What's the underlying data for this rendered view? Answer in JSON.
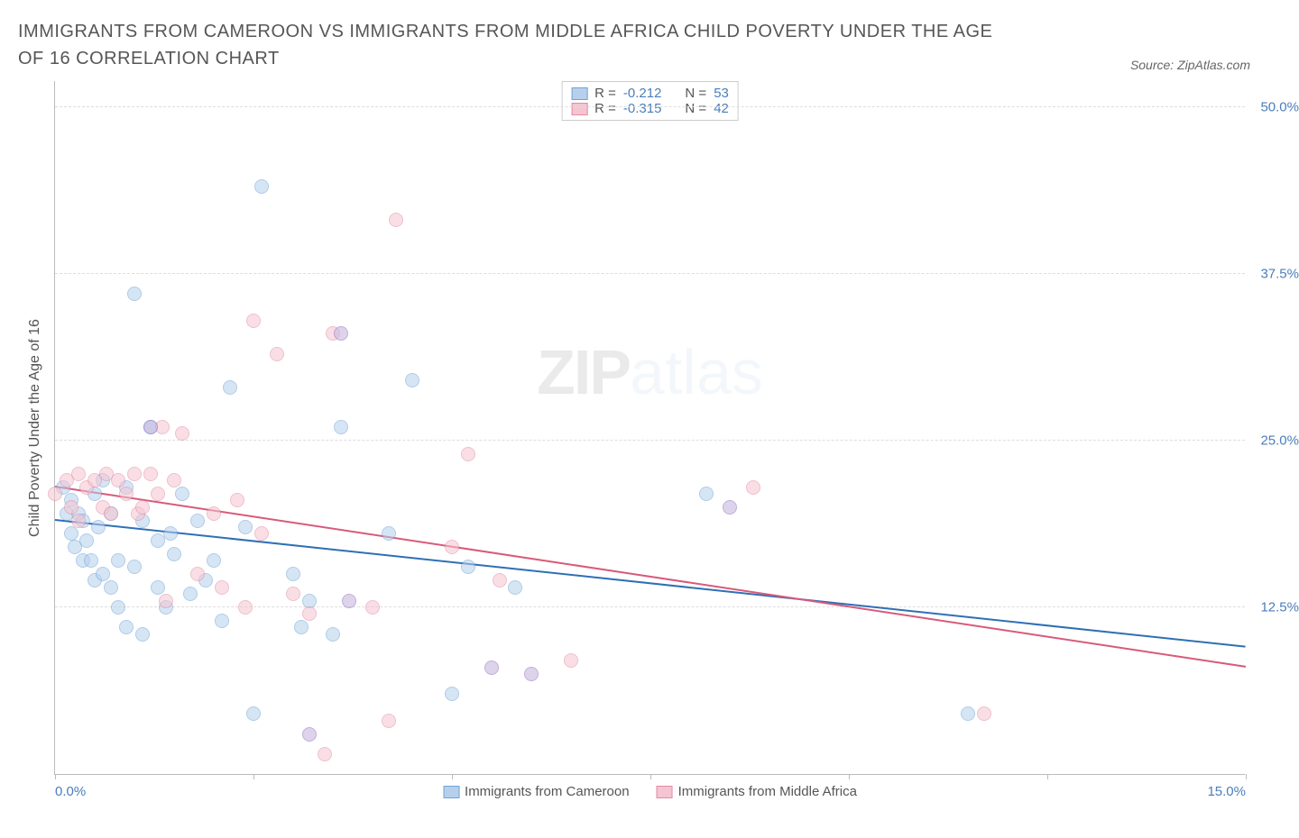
{
  "title": "IMMIGRANTS FROM CAMEROON VS IMMIGRANTS FROM MIDDLE AFRICA CHILD POVERTY UNDER THE AGE OF 16 CORRELATION CHART",
  "source_label": "Source: ZipAtlas.com",
  "ylabel": "Child Poverty Under the Age of 16",
  "watermark_a": "ZIP",
  "watermark_b": "atlas",
  "x_axis": {
    "min": 0.0,
    "max": 15.0,
    "tick_step": 2.5,
    "show_labels": [
      0.0,
      15.0
    ],
    "label_suffix": "%"
  },
  "y_axis": {
    "min": 0.0,
    "max": 52.0,
    "gridlines": [
      12.5,
      25.0,
      37.5,
      50.0
    ],
    "label_suffix": "%"
  },
  "series": [
    {
      "key": "cameroon",
      "name": "Immigrants from Cameroon",
      "fill": "#b6d0ec",
      "stroke": "#6fa3d8",
      "line_color": "#2f6fb5",
      "marker_radius": 8,
      "fill_opacity": 0.55,
      "r_value": "-0.212",
      "n_value": "53",
      "trend": {
        "x1": 0.0,
        "y1": 19.0,
        "x2": 15.0,
        "y2": 9.5
      },
      "points": [
        [
          0.1,
          21.5
        ],
        [
          0.15,
          19.5
        ],
        [
          0.2,
          18.0
        ],
        [
          0.2,
          20.5
        ],
        [
          0.25,
          17.0
        ],
        [
          0.3,
          19.5
        ],
        [
          0.35,
          19.0
        ],
        [
          0.35,
          16.0
        ],
        [
          0.4,
          17.5
        ],
        [
          0.45,
          16.0
        ],
        [
          0.5,
          21.0
        ],
        [
          0.5,
          14.5
        ],
        [
          0.55,
          18.5
        ],
        [
          0.6,
          22.0
        ],
        [
          0.6,
          15.0
        ],
        [
          0.7,
          19.5
        ],
        [
          0.7,
          14.0
        ],
        [
          0.8,
          16.0
        ],
        [
          0.8,
          12.5
        ],
        [
          0.9,
          21.5
        ],
        [
          0.9,
          11.0
        ],
        [
          1.0,
          36.0
        ],
        [
          1.0,
          15.5
        ],
        [
          1.1,
          19.0
        ],
        [
          1.1,
          10.5
        ],
        [
          1.2,
          26.0
        ],
        [
          1.3,
          17.5
        ],
        [
          1.3,
          14.0
        ],
        [
          1.4,
          12.5
        ],
        [
          1.45,
          18.0
        ],
        [
          1.5,
          16.5
        ],
        [
          1.6,
          21.0
        ],
        [
          1.7,
          13.5
        ],
        [
          1.8,
          19.0
        ],
        [
          1.9,
          14.5
        ],
        [
          2.0,
          16.0
        ],
        [
          2.1,
          11.5
        ],
        [
          2.2,
          29.0
        ],
        [
          2.4,
          18.5
        ],
        [
          2.5,
          4.5
        ],
        [
          2.6,
          44.0
        ],
        [
          3.0,
          15.0
        ],
        [
          3.1,
          11.0
        ],
        [
          3.2,
          13.0
        ],
        [
          3.5,
          10.5
        ],
        [
          3.6,
          26.0
        ],
        [
          4.2,
          18.0
        ],
        [
          4.5,
          29.5
        ],
        [
          5.0,
          6.0
        ],
        [
          5.8,
          14.0
        ],
        [
          5.2,
          15.5
        ],
        [
          8.2,
          21.0
        ],
        [
          11.5,
          4.5
        ]
      ]
    },
    {
      "key": "middle_africa",
      "name": "Immigrants from Middle Africa",
      "fill": "#f5c5d1",
      "stroke": "#e28ca3",
      "line_color": "#d85a7a",
      "marker_radius": 8,
      "fill_opacity": 0.55,
      "r_value": "-0.315",
      "n_value": "42",
      "trend": {
        "x1": 0.0,
        "y1": 21.5,
        "x2": 15.0,
        "y2": 8.0
      },
      "points": [
        [
          0.0,
          21.0
        ],
        [
          0.15,
          22.0
        ],
        [
          0.2,
          20.0
        ],
        [
          0.3,
          22.5
        ],
        [
          0.3,
          19.0
        ],
        [
          0.4,
          21.5
        ],
        [
          0.5,
          22.0
        ],
        [
          0.6,
          20.0
        ],
        [
          0.65,
          22.5
        ],
        [
          0.7,
          19.5
        ],
        [
          0.8,
          22.0
        ],
        [
          0.9,
          21.0
        ],
        [
          1.0,
          22.5
        ],
        [
          1.05,
          19.5
        ],
        [
          1.1,
          20.0
        ],
        [
          1.2,
          22.5
        ],
        [
          1.3,
          21.0
        ],
        [
          1.35,
          26.0
        ],
        [
          1.4,
          13.0
        ],
        [
          1.5,
          22.0
        ],
        [
          1.6,
          25.5
        ],
        [
          1.8,
          15.0
        ],
        [
          2.0,
          19.5
        ],
        [
          2.1,
          14.0
        ],
        [
          2.3,
          20.5
        ],
        [
          2.4,
          12.5
        ],
        [
          2.5,
          34.0
        ],
        [
          2.6,
          18.0
        ],
        [
          2.8,
          31.5
        ],
        [
          3.0,
          13.5
        ],
        [
          3.2,
          12.0
        ],
        [
          3.4,
          1.5
        ],
        [
          3.5,
          33.0
        ],
        [
          4.0,
          12.5
        ],
        [
          4.2,
          4.0
        ],
        [
          4.3,
          41.5
        ],
        [
          5.0,
          17.0
        ],
        [
          5.2,
          24.0
        ],
        [
          5.6,
          14.5
        ],
        [
          6.5,
          8.5
        ],
        [
          8.8,
          21.5
        ],
        [
          11.7,
          4.5
        ]
      ]
    }
  ],
  "overlap_points": [
    [
      1.2,
      26.0
    ],
    [
      3.6,
      33.0
    ],
    [
      3.2,
      3.0
    ],
    [
      6.0,
      7.5
    ],
    [
      8.5,
      20.0
    ],
    [
      3.7,
      13.0
    ],
    [
      5.5,
      8.0
    ]
  ],
  "overlap_style": {
    "fill": "#c8b8e0",
    "stroke": "#9878c0",
    "radius": 8,
    "opacity": 0.6
  },
  "legend_stats_label_r": "R =",
  "legend_stats_label_n": "N ="
}
